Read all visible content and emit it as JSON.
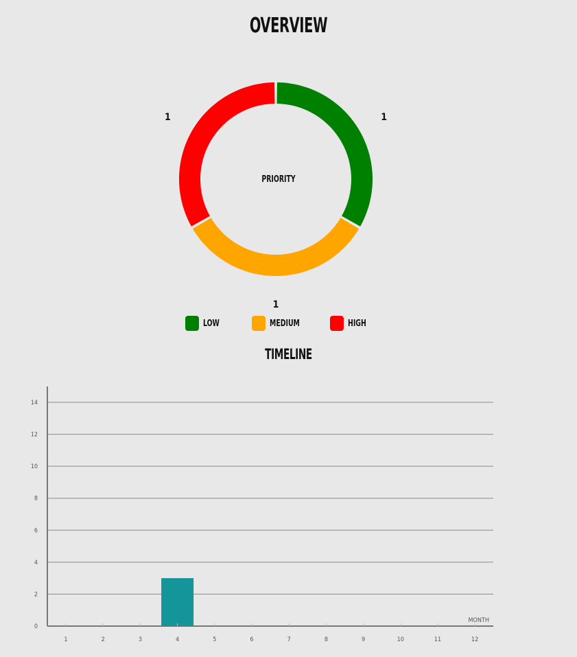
{
  "overview": {
    "title": "OVERVIEW"
  },
  "timeline": {
    "title": "TIMELINE"
  },
  "chart_data": [
    {
      "type": "pie",
      "title": "OVERVIEW",
      "center_label": "PRIORITY",
      "categories": [
        "LOW",
        "MEDIUM",
        "HIGH"
      ],
      "values": [
        1,
        1,
        1
      ],
      "data_labels": [
        "1",
        "1",
        "1"
      ],
      "colors": [
        "#008000",
        "#ffa500",
        "#ff0000"
      ],
      "legend": "bottom"
    },
    {
      "type": "bar",
      "title": "TIMELINE",
      "xlabel": "MONTH",
      "ylabel": "",
      "categories": [
        "1",
        "2",
        "3",
        "4",
        "5",
        "6",
        "7",
        "8",
        "9",
        "10",
        "11",
        "12"
      ],
      "values": [
        0,
        0,
        0,
        3,
        0,
        0,
        0,
        0,
        0,
        0,
        0,
        0
      ],
      "ylim": [
        0,
        15
      ],
      "yticks": [
        "0",
        "2",
        "4",
        "6",
        "8",
        "10",
        "12",
        "14"
      ],
      "grid": true,
      "bar_color": "#13959a"
    }
  ]
}
